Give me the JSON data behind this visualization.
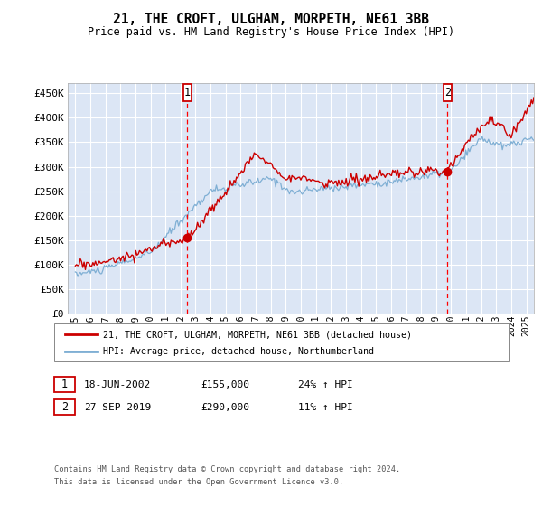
{
  "title": "21, THE CROFT, ULGHAM, MORPETH, NE61 3BB",
  "subtitle": "Price paid vs. HM Land Registry's House Price Index (HPI)",
  "sale1_date": "18-JUN-2002",
  "sale1_price": 155000,
  "sale1_year": 2002.46,
  "sale1_label": "24% ↑ HPI",
  "sale2_date": "27-SEP-2019",
  "sale2_price": 290000,
  "sale2_year": 2019.75,
  "sale2_label": "11% ↑ HPI",
  "legend1": "21, THE CROFT, ULGHAM, MORPETH, NE61 3BB (detached house)",
  "legend2": "HPI: Average price, detached house, Northumberland",
  "footer1": "Contains HM Land Registry data © Crown copyright and database right 2024.",
  "footer2": "This data is licensed under the Open Government Licence v3.0.",
  "yticks": [
    0,
    50000,
    100000,
    150000,
    200000,
    250000,
    300000,
    350000,
    400000,
    450000
  ],
  "ylim": [
    0,
    470000
  ],
  "background_color": "#dce6f5",
  "grid_color": "#ffffff",
  "red_line_color": "#cc0000",
  "blue_line_color": "#7fafd4",
  "xstart": 1995,
  "xend": 2025.5
}
